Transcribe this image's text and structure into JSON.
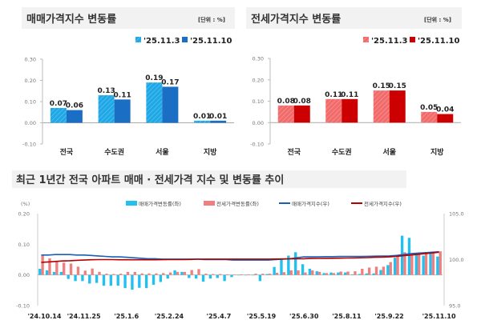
{
  "chart_data": [
    {
      "type": "bar",
      "title": "매매가격지수 변동률",
      "unit": "[단위 : %]",
      "categories": [
        "전국",
        "수도권",
        "서울",
        "지방"
      ],
      "series": [
        {
          "name": "'25.11.3",
          "values": [
            0.07,
            0.13,
            0.19,
            0.01
          ],
          "color": "#1fa8e6"
        },
        {
          "name": "'25.11.10",
          "values": [
            0.06,
            0.11,
            0.17,
            0.01
          ],
          "color": "#1a6fc4"
        }
      ],
      "yticks": [
        "0.30",
        "0.20",
        "0.10",
        "0.00",
        "-0.10"
      ],
      "ylim": [
        -0.1,
        0.3
      ],
      "legend": "top-right"
    },
    {
      "type": "bar",
      "title": "전세가격지수 변동률",
      "unit": "[단위 : %]",
      "categories": [
        "전국",
        "수도권",
        "서울",
        "지방"
      ],
      "series": [
        {
          "name": "'25.11.3",
          "values": [
            0.08,
            0.11,
            0.15,
            0.05
          ],
          "color": "#f26b6b"
        },
        {
          "name": "'25.11.10",
          "values": [
            0.08,
            0.11,
            0.15,
            0.04
          ],
          "color": "#cc0000"
        }
      ],
      "yticks": [
        "0.30",
        "0.20",
        "0.10",
        "0.00",
        "-0.10"
      ],
      "ylim": [
        -0.1,
        0.3
      ],
      "legend": "top-right"
    },
    {
      "type": "bar+line",
      "title": "최근 1년간 전국 아파트 매매 · 전세가격 지수 및 변동률 추이",
      "ylabel_left": "(%)",
      "yticks_left": [
        "0.20",
        "0.10",
        "0.00",
        "-0.10"
      ],
      "ylim_left": [
        -0.1,
        0.2
      ],
      "yticks_right": [
        "105.0",
        "100.0",
        "95.0"
      ],
      "ylim_right": [
        95.0,
        105.0
      ],
      "xticks": [
        "'24.10.14",
        "'24.11.25",
        "'25.1.6",
        "'25.2.24",
        "'25.4.7",
        "'25.5.19",
        "'25.6.30",
        "'25.8.11",
        "'25.9.22",
        "'25.11.10"
      ],
      "series": [
        {
          "name": "매매가격변동률(좌)",
          "kind": "bar",
          "color": "#22c0ee",
          "values": [
            0.02,
            0.015,
            0.01,
            0.01,
            -0.013,
            -0.02,
            -0.02,
            -0.028,
            -0.026,
            -0.035,
            -0.035,
            -0.035,
            -0.043,
            -0.048,
            -0.042,
            -0.043,
            -0.032,
            -0.023,
            -0.012,
            0.015,
            0.01,
            -0.01,
            -0.012,
            -0.022,
            -0.012,
            -0.01,
            -0.02,
            -0.007,
            0,
            0,
            0,
            -0.02,
            0.003,
            0.026,
            0.05,
            0.063,
            0.074,
            0.035,
            0.02,
            0.012,
            0.006,
            0.008,
            0.008,
            0.008,
            0.002,
            0.003,
            0.005,
            0.005,
            0.016,
            0.032,
            0.056,
            0.128,
            0.121,
            0.07,
            0.063,
            0.07,
            0.06
          ]
        },
        {
          "name": "전세가격변동률(좌)",
          "kind": "bar",
          "color": "#f08080",
          "values": [
            0.063,
            0.054,
            0.045,
            0.04,
            0.037,
            0.027,
            0.014,
            0.021,
            0.01,
            0.004,
            0.003,
            0.004,
            0.01,
            0.01,
            0.005,
            0.005,
            0.005,
            0.006,
            0.008,
            0.01,
            0.01,
            0.016,
            0.019,
            0.004,
            0.003,
            0.003,
            0.002,
            0.001,
            0.002,
            0.002,
            0.004,
            0.004,
            0.004,
            0.007,
            0.009,
            0.015,
            0.015,
            0.008,
            0.015,
            0.01,
            0.006,
            0.006,
            0.011,
            0.011,
            0.012,
            0.02,
            0.024,
            0.027,
            0.027,
            0.042,
            0.062,
            0.074,
            0.07,
            0.07,
            0.07,
            0.075,
            0.077
          ]
        },
        {
          "name": "매매가격지수(우)",
          "kind": "line",
          "color": "#1a5fb4",
          "values": [
            100.5,
            100.5,
            100.55,
            100.55,
            100.55,
            100.5,
            100.5,
            100.45,
            100.4,
            100.35,
            100.3,
            100.3,
            100.25,
            100.2,
            100.15,
            100.1,
            100.1,
            100.05,
            100.05,
            100.05,
            100.05,
            100.05,
            100.05,
            100.0,
            100.0,
            100.0,
            100.0,
            99.95,
            99.95,
            99.95,
            99.95,
            99.95,
            99.95,
            100.0,
            100.05,
            100.1,
            100.2,
            100.3,
            100.3,
            100.3,
            100.32,
            100.32,
            100.34,
            100.35,
            100.35,
            100.35,
            100.36,
            100.37,
            100.38,
            100.4,
            100.45,
            100.55,
            100.65,
            100.7,
            100.75,
            100.8,
            100.85
          ]
        },
        {
          "name": "전세가격지수(우)",
          "kind": "line",
          "color": "#b00000",
          "values": [
            99.7,
            99.75,
            99.8,
            99.85,
            99.88,
            99.92,
            99.95,
            99.98,
            100.0,
            100.0,
            100.0,
            99.98,
            99.98,
            99.98,
            99.98,
            99.98,
            99.98,
            99.99,
            100.0,
            100.0,
            100.0,
            100.02,
            100.04,
            100.05,
            100.05,
            100.05,
            100.05,
            100.05,
            100.05,
            100.05,
            100.05,
            100.05,
            100.05,
            100.06,
            100.07,
            100.08,
            100.09,
            100.1,
            100.12,
            100.13,
            100.14,
            100.15,
            100.16,
            100.17,
            100.18,
            100.2,
            100.22,
            100.25,
            100.27,
            100.3,
            100.36,
            100.43,
            100.5,
            100.57,
            100.64,
            100.72,
            100.8
          ]
        }
      ],
      "legend": "top-center"
    }
  ]
}
